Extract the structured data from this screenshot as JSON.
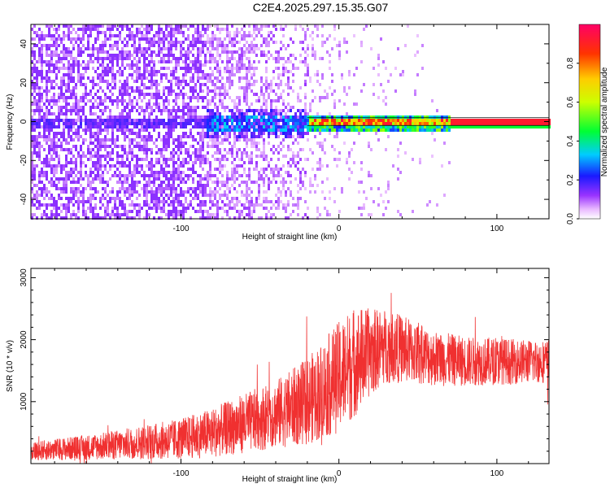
{
  "title": "C2E4.2025.297.15.35.G07",
  "colors": {
    "snr_line": "#f03030",
    "axis": "#000000",
    "background": "#ffffff"
  },
  "chart_data": [
    {
      "type": "heatmap",
      "name": "spectrogram",
      "xlabel": "Height of straight line (km)",
      "ylabel": "Frequency (Hz)",
      "xlim": [
        -195,
        133
      ],
      "ylim": [
        -50,
        50
      ],
      "xticks": [
        -100,
        0,
        100
      ],
      "yticks": [
        -40,
        -20,
        0,
        20,
        40
      ],
      "grid": false,
      "colorbar": {
        "label": "Normalized spectral amplitude",
        "range": [
          0.0,
          1.0
        ],
        "ticks": [
          0.0,
          0.2,
          0.4,
          0.6,
          0.8
        ]
      },
      "segments": [
        {
          "x_range": [
            -195,
            -100
          ],
          "noise_density": 0.55,
          "peak_amplitude": 0.15,
          "description_value_at_0Hz": 0.2
        },
        {
          "x_range": [
            -100,
            -20
          ],
          "noise_density": 0.3,
          "peak_amplitude": 0.35
        },
        {
          "x_range": [
            -20,
            70
          ],
          "noise_density": 0.05,
          "peak_amplitude": 0.8
        },
        {
          "x_range": [
            70,
            133
          ],
          "noise_density": 0.0,
          "peak_amplitude": 0.9
        }
      ]
    },
    {
      "type": "line",
      "name": "snr",
      "xlabel": "Height of straight line (km)",
      "ylabel": "SNR (10 * v/v)",
      "xlim": [
        -195,
        133
      ],
      "ylim": [
        0,
        3150
      ],
      "xticks": [
        -100,
        0,
        100
      ],
      "yticks": [
        1000,
        2000,
        3000
      ],
      "grid": false,
      "envelope": {
        "x": [
          -195,
          -150,
          -100,
          -80,
          -60,
          -40,
          -20,
          -10,
          0,
          10,
          20,
          30,
          40,
          60,
          80,
          100,
          120,
          133
        ],
        "mean": [
          200,
          280,
          400,
          500,
          650,
          800,
          1000,
          1200,
          1400,
          1650,
          1800,
          1900,
          1850,
          1700,
          1650,
          1650,
          1650,
          1650
        ],
        "spread": [
          150,
          220,
          330,
          400,
          480,
          550,
          700,
          800,
          900,
          900,
          700,
          600,
          550,
          450,
          400,
          380,
          350,
          350
        ]
      }
    }
  ]
}
